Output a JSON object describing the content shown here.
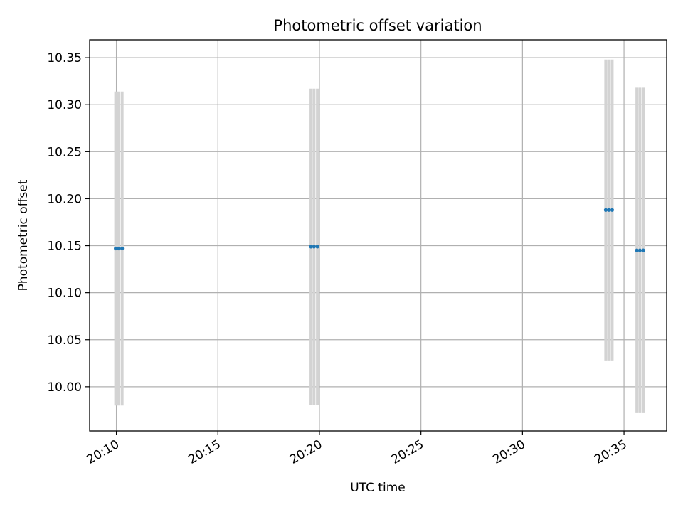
{
  "chart_data": {
    "type": "scatter",
    "title": "Photometric offset variation",
    "xlabel": "UTC time",
    "ylabel": "Photometric offset",
    "x_unit": "minute",
    "xlim": [
      "20:08:41",
      "20:37:06"
    ],
    "ylim": [
      9.953,
      10.369
    ],
    "x_ticks": [
      "20:10",
      "20:15",
      "20:20",
      "20:25",
      "20:30",
      "20:35"
    ],
    "y_ticks": [
      "10.00",
      "10.05",
      "10.10",
      "10.15",
      "10.20",
      "10.25",
      "10.30",
      "10.35"
    ],
    "grid": true,
    "legend": "none",
    "series": [
      {
        "points": [
          {
            "x": "20:09:58",
            "y": 10.147,
            "err": 0.167
          },
          {
            "x": "20:10:07",
            "y": 10.147,
            "err": 0.167
          },
          {
            "x": "20:10:17",
            "y": 10.147,
            "err": 0.167
          },
          {
            "x": "20:19:35",
            "y": 10.149,
            "err": 0.168
          },
          {
            "x": "20:19:44",
            "y": 10.149,
            "err": 0.168
          },
          {
            "x": "20:19:54",
            "y": 10.149,
            "err": 0.168
          },
          {
            "x": "20:34:06",
            "y": 10.188,
            "err": 0.16
          },
          {
            "x": "20:34:15",
            "y": 10.188,
            "err": 0.16
          },
          {
            "x": "20:34:25",
            "y": 10.188,
            "err": 0.16
          },
          {
            "x": "20:35:38",
            "y": 10.145,
            "err": 0.173
          },
          {
            "x": "20:35:47",
            "y": 10.145,
            "err": 0.173
          },
          {
            "x": "20:35:57",
            "y": 10.145,
            "err": 0.173
          }
        ]
      }
    ],
    "colors": {
      "marker": "#1f77b4",
      "errorbar": "#d3d3d3",
      "grid": "#b0b0b0",
      "axes": "#000000"
    }
  }
}
